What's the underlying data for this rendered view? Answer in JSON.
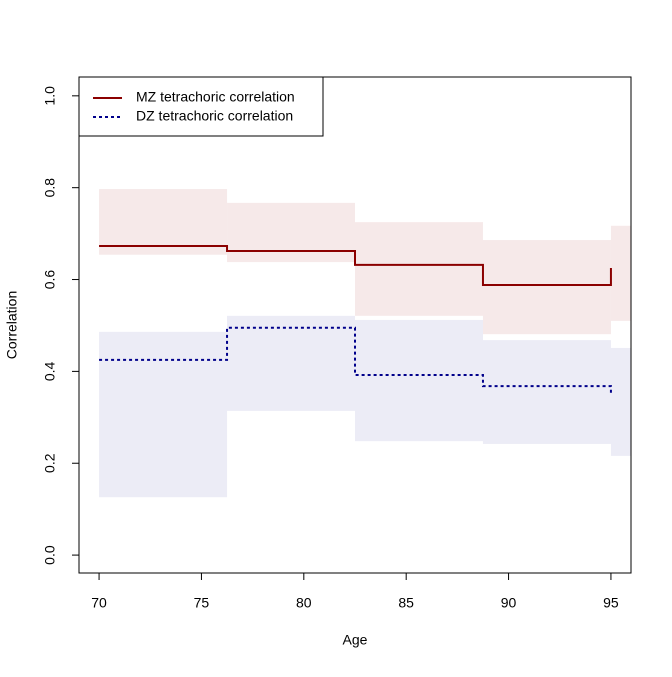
{
  "chart_data": {
    "type": "step",
    "x_label": "Age",
    "y_label": "Correlation",
    "x": [
      70,
      76.25,
      82.5,
      88.75,
      95
    ],
    "band_edges": [
      70,
      76.25,
      82.5,
      88.75,
      95,
      96
    ],
    "series": [
      {
        "name": "MZ tetrachoric correlation",
        "color": "#8b0000",
        "band_color": "#f3e2e2",
        "dash": false,
        "values": [
          0.673,
          0.662,
          0.632,
          0.588,
          0.625
        ],
        "upper": [
          0.797,
          0.767,
          0.725,
          0.686,
          0.717
        ],
        "lower": [
          0.654,
          0.638,
          0.521,
          0.481,
          0.51
        ]
      },
      {
        "name": "DZ tetrachoric correlation",
        "color": "#00008b",
        "band_color": "#e5e5f3",
        "dash": true,
        "values": [
          0.425,
          0.495,
          0.392,
          0.368,
          0.349
        ],
        "upper": [
          0.486,
          0.521,
          0.512,
          0.468,
          0.451
        ],
        "lower": [
          0.126,
          0.314,
          0.248,
          0.242,
          0.216
        ]
      }
    ],
    "xlim": [
      69.02,
      95.98
    ],
    "ylim": [
      -0.039,
      1.041
    ],
    "xticks": [
      70,
      75,
      80,
      85,
      90,
      95
    ],
    "yticks": [
      {
        "value": 0,
        "label": "0.0"
      },
      0.2,
      0.4,
      0.6,
      0.8,
      {
        "value": 1,
        "label": "1.0"
      }
    ],
    "legend": "top-left"
  }
}
